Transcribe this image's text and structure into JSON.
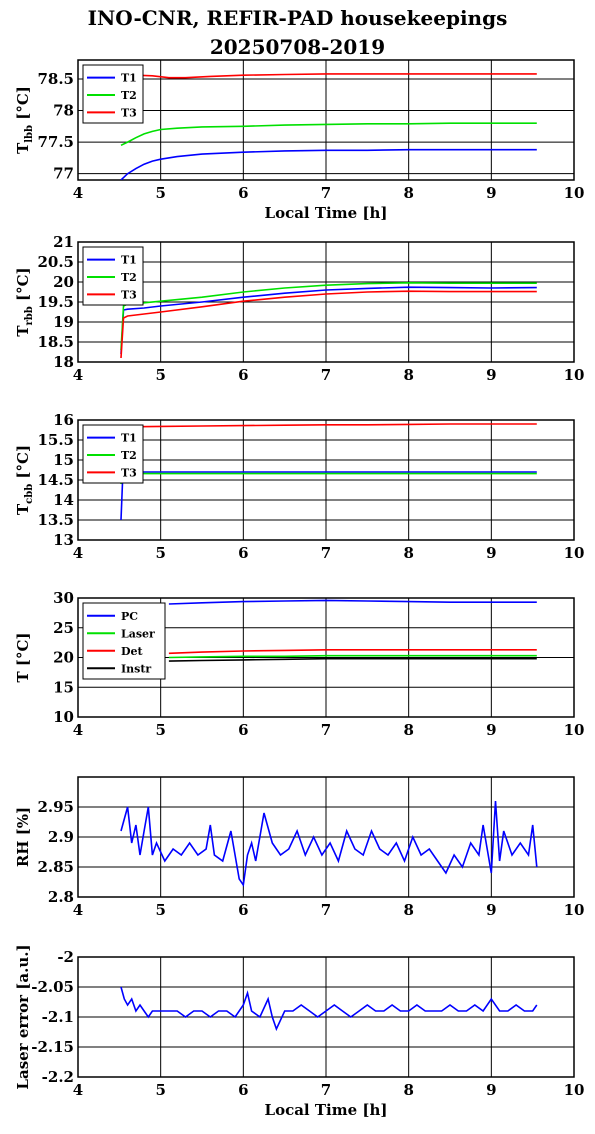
{
  "title": {
    "line1": "INO-CNR, REFIR-PAD housekeepings",
    "line2": "20250708-2019"
  },
  "colors": {
    "blue": "#0000ff",
    "green": "#00e000",
    "red": "#ff0000",
    "black": "#000000"
  },
  "chart_data": [
    {
      "type": "line",
      "ylabel": "T_lbb [°C]",
      "xlabel": "Local Time [h]",
      "xlim": [
        4,
        10
      ],
      "ylim": [
        76.9,
        78.8
      ],
      "xticks": [
        "4",
        "5",
        "6",
        "7",
        "8",
        "9",
        "10"
      ],
      "yticks": [
        "77",
        "77.5",
        "78",
        "78.5"
      ],
      "grid": true,
      "legend": "top-left",
      "series": [
        {
          "name": "T1",
          "color": "#0000ff",
          "x": [
            4.52,
            4.6,
            4.7,
            4.8,
            4.9,
            5.0,
            5.2,
            5.5,
            6.0,
            6.5,
            7.0,
            7.5,
            8.0,
            8.5,
            9.0,
            9.55
          ],
          "y": [
            76.9,
            77.0,
            77.08,
            77.15,
            77.2,
            77.23,
            77.27,
            77.31,
            77.34,
            77.36,
            77.37,
            77.37,
            77.38,
            77.38,
            77.38,
            77.38
          ]
        },
        {
          "name": "T2",
          "color": "#00e000",
          "x": [
            4.52,
            4.6,
            4.7,
            4.8,
            4.9,
            5.0,
            5.2,
            5.5,
            6.0,
            6.5,
            7.0,
            7.5,
            8.0,
            8.5,
            9.0,
            9.55
          ],
          "y": [
            77.45,
            77.5,
            77.57,
            77.63,
            77.67,
            77.7,
            77.72,
            77.74,
            77.75,
            77.77,
            77.78,
            77.79,
            77.79,
            77.8,
            77.8,
            77.8
          ]
        },
        {
          "name": "T3",
          "color": "#ff0000",
          "x": [
            4.52,
            4.7,
            4.9,
            5.1,
            5.3,
            5.6,
            6.0,
            6.5,
            7.0,
            7.5,
            8.0,
            8.5,
            9.0,
            9.55
          ],
          "y": [
            78.55,
            78.56,
            78.55,
            78.52,
            78.52,
            78.54,
            78.56,
            78.57,
            78.58,
            78.58,
            78.58,
            78.58,
            78.58,
            78.58
          ]
        }
      ]
    },
    {
      "type": "line",
      "ylabel": "T_rbb [°C]",
      "xlabel": "",
      "xlim": [
        4,
        10
      ],
      "ylim": [
        18,
        21
      ],
      "xticks": [
        "4",
        "5",
        "6",
        "7",
        "8",
        "9",
        "10"
      ],
      "yticks": [
        "18",
        "18.5",
        "19",
        "19.5",
        "20",
        "20.5",
        "21"
      ],
      "grid": true,
      "legend": "top-left",
      "series": [
        {
          "name": "T1",
          "color": "#0000ff",
          "x": [
            4.52,
            4.55,
            4.6,
            4.8,
            5.0,
            5.5,
            6.0,
            6.5,
            7.0,
            7.5,
            8.0,
            8.5,
            9.0,
            9.55
          ],
          "y": [
            18.2,
            19.3,
            19.32,
            19.35,
            19.4,
            19.5,
            19.62,
            19.72,
            19.8,
            19.84,
            19.87,
            19.86,
            19.85,
            19.86
          ]
        },
        {
          "name": "T2",
          "color": "#00e000",
          "x": [
            4.52,
            4.55,
            4.6,
            4.8,
            5.0,
            5.5,
            6.0,
            6.5,
            7.0,
            7.5,
            8.0,
            8.5,
            9.0,
            9.55
          ],
          "y": [
            18.3,
            19.4,
            19.45,
            19.48,
            19.52,
            19.62,
            19.75,
            19.85,
            19.92,
            19.96,
            19.98,
            19.97,
            19.97,
            19.97
          ]
        },
        {
          "name": "T3",
          "color": "#ff0000",
          "x": [
            4.52,
            4.55,
            4.6,
            4.8,
            5.0,
            5.5,
            6.0,
            6.5,
            7.0,
            7.5,
            8.0,
            8.5,
            9.0,
            9.55
          ],
          "y": [
            18.1,
            19.1,
            19.15,
            19.2,
            19.25,
            19.38,
            19.52,
            19.62,
            19.7,
            19.75,
            19.77,
            19.76,
            19.76,
            19.76
          ]
        }
      ]
    },
    {
      "type": "line",
      "ylabel": "T_cbb [°C]",
      "xlabel": "",
      "xlim": [
        4,
        10
      ],
      "ylim": [
        13,
        16
      ],
      "xticks": [
        "4",
        "5",
        "6",
        "7",
        "8",
        "9",
        "10"
      ],
      "yticks": [
        "13",
        "13.5",
        "14",
        "14.5",
        "15",
        "15.5",
        "16"
      ],
      "grid": true,
      "legend": "top-left",
      "series": [
        {
          "name": "T1",
          "color": "#0000ff",
          "x": [
            4.52,
            4.54,
            4.56,
            4.6,
            5.0,
            5.5,
            6.0,
            6.5,
            7.0,
            7.5,
            8.0,
            8.5,
            9.0,
            9.55
          ],
          "y": [
            13.5,
            14.5,
            14.68,
            14.7,
            14.7,
            14.7,
            14.7,
            14.7,
            14.7,
            14.7,
            14.7,
            14.7,
            14.7,
            14.7
          ]
        },
        {
          "name": "T2",
          "color": "#00e000",
          "x": [
            4.52,
            4.54,
            4.56,
            4.6,
            5.0,
            5.5,
            6.0,
            6.5,
            7.0,
            7.5,
            8.0,
            8.5,
            9.0,
            9.55
          ],
          "y": [
            14.4,
            14.6,
            14.65,
            14.66,
            14.66,
            14.66,
            14.66,
            14.66,
            14.66,
            14.66,
            14.66,
            14.66,
            14.66,
            14.66
          ]
        },
        {
          "name": "T3",
          "color": "#ff0000",
          "x": [
            4.52,
            4.6,
            5.0,
            5.5,
            6.0,
            6.5,
            7.0,
            7.5,
            8.0,
            8.5,
            9.0,
            9.55
          ],
          "y": [
            15.82,
            15.83,
            15.84,
            15.85,
            15.86,
            15.87,
            15.88,
            15.88,
            15.89,
            15.9,
            15.9,
            15.9
          ]
        }
      ]
    },
    {
      "type": "line",
      "ylabel": "T [°C]",
      "xlabel": "",
      "xlim": [
        4,
        10
      ],
      "ylim": [
        10,
        30
      ],
      "xticks": [
        "4",
        "5",
        "6",
        "7",
        "8",
        "9",
        "10"
      ],
      "yticks": [
        "10",
        "15",
        "20",
        "25",
        "30"
      ],
      "grid": true,
      "legend": "top-left",
      "series": [
        {
          "name": "PC",
          "color": "#0000ff",
          "x": [
            5.1,
            5.5,
            6.0,
            6.5,
            7.0,
            7.5,
            8.0,
            8.5,
            9.0,
            9.55
          ],
          "y": [
            29.0,
            29.2,
            29.4,
            29.5,
            29.6,
            29.5,
            29.4,
            29.3,
            29.3,
            29.3
          ]
        },
        {
          "name": "Laser",
          "color": "#00e000",
          "x": [
            5.1,
            5.5,
            6.0,
            6.5,
            7.0,
            7.5,
            8.0,
            8.5,
            9.0,
            9.55
          ],
          "y": [
            20.0,
            20.1,
            20.2,
            20.2,
            20.3,
            20.3,
            20.3,
            20.3,
            20.3,
            20.3
          ]
        },
        {
          "name": "Det",
          "color": "#ff0000",
          "x": [
            5.1,
            5.5,
            6.0,
            6.5,
            7.0,
            7.5,
            8.0,
            8.5,
            9.0,
            9.55
          ],
          "y": [
            20.7,
            20.9,
            21.1,
            21.2,
            21.3,
            21.3,
            21.3,
            21.3,
            21.3,
            21.3
          ]
        },
        {
          "name": "Instr",
          "color": "#000000",
          "x": [
            5.1,
            5.5,
            6.0,
            6.5,
            7.0,
            7.5,
            8.0,
            8.5,
            9.0,
            9.55
          ],
          "y": [
            19.4,
            19.5,
            19.6,
            19.7,
            19.8,
            19.8,
            19.8,
            19.8,
            19.8,
            19.8
          ]
        }
      ]
    },
    {
      "type": "line",
      "ylabel": "RH [%]",
      "xlabel": "",
      "xlim": [
        4,
        10
      ],
      "ylim": [
        2.8,
        3.0
      ],
      "xticks": [
        "4",
        "5",
        "6",
        "7",
        "8",
        "9",
        "10"
      ],
      "yticks": [
        "2.8",
        "2.85",
        "2.9",
        "2.95"
      ],
      "grid": true,
      "legend": "none",
      "series": [
        {
          "color": "#0000ff",
          "x": [
            4.52,
            4.6,
            4.65,
            4.7,
            4.75,
            4.8,
            4.85,
            4.9,
            4.95,
            5.05,
            5.15,
            5.25,
            5.35,
            5.45,
            5.55,
            5.6,
            5.65,
            5.75,
            5.85,
            5.95,
            6.0,
            6.05,
            6.1,
            6.15,
            6.25,
            6.35,
            6.45,
            6.55,
            6.65,
            6.75,
            6.85,
            6.95,
            7.05,
            7.15,
            7.25,
            7.35,
            7.45,
            7.55,
            7.65,
            7.75,
            7.85,
            7.95,
            8.05,
            8.15,
            8.25,
            8.35,
            8.45,
            8.55,
            8.65,
            8.75,
            8.85,
            8.9,
            9.0,
            9.05,
            9.1,
            9.15,
            9.25,
            9.35,
            9.45,
            9.5,
            9.55
          ],
          "y": [
            2.91,
            2.95,
            2.89,
            2.92,
            2.87,
            2.91,
            2.95,
            2.87,
            2.89,
            2.86,
            2.88,
            2.87,
            2.89,
            2.87,
            2.88,
            2.92,
            2.87,
            2.86,
            2.91,
            2.83,
            2.82,
            2.87,
            2.89,
            2.86,
            2.94,
            2.89,
            2.87,
            2.88,
            2.91,
            2.87,
            2.9,
            2.87,
            2.89,
            2.86,
            2.91,
            2.88,
            2.87,
            2.91,
            2.88,
            2.87,
            2.89,
            2.86,
            2.9,
            2.87,
            2.88,
            2.86,
            2.84,
            2.87,
            2.85,
            2.89,
            2.87,
            2.92,
            2.84,
            2.96,
            2.86,
            2.91,
            2.87,
            2.89,
            2.87,
            2.92,
            2.85
          ]
        }
      ]
    },
    {
      "type": "line",
      "ylabel": "Laser error [a.u.]",
      "xlabel": "Local Time [h]",
      "xlim": [
        4,
        10
      ],
      "ylim": [
        -2.2,
        -2.0
      ],
      "xticks": [
        "4",
        "5",
        "6",
        "7",
        "8",
        "9",
        "10"
      ],
      "yticks": [
        "-2.2",
        "-2.15",
        "-2.1",
        "-2.05",
        "-2"
      ],
      "grid": true,
      "legend": "none",
      "series": [
        {
          "color": "#0000ff",
          "x": [
            4.52,
            4.56,
            4.6,
            4.65,
            4.7,
            4.75,
            4.8,
            4.85,
            4.9,
            5.0,
            5.2,
            5.3,
            5.4,
            5.5,
            5.6,
            5.7,
            5.8,
            5.9,
            6.0,
            6.05,
            6.1,
            6.2,
            6.3,
            6.35,
            6.4,
            6.5,
            6.6,
            6.7,
            6.8,
            6.9,
            7.0,
            7.1,
            7.2,
            7.3,
            7.4,
            7.5,
            7.6,
            7.7,
            7.8,
            7.9,
            8.0,
            8.1,
            8.2,
            8.3,
            8.4,
            8.5,
            8.6,
            8.7,
            8.8,
            8.9,
            9.0,
            9.1,
            9.2,
            9.3,
            9.4,
            9.5,
            9.55
          ],
          "y": [
            -2.05,
            -2.07,
            -2.08,
            -2.07,
            -2.09,
            -2.08,
            -2.09,
            -2.1,
            -2.09,
            -2.09,
            -2.09,
            -2.1,
            -2.09,
            -2.09,
            -2.1,
            -2.09,
            -2.09,
            -2.1,
            -2.08,
            -2.06,
            -2.09,
            -2.1,
            -2.07,
            -2.1,
            -2.12,
            -2.09,
            -2.09,
            -2.08,
            -2.09,
            -2.1,
            -2.09,
            -2.08,
            -2.09,
            -2.1,
            -2.09,
            -2.08,
            -2.09,
            -2.09,
            -2.08,
            -2.09,
            -2.09,
            -2.08,
            -2.09,
            -2.09,
            -2.09,
            -2.08,
            -2.09,
            -2.09,
            -2.08,
            -2.09,
            -2.07,
            -2.09,
            -2.09,
            -2.08,
            -2.09,
            -2.09,
            -2.08
          ]
        }
      ]
    }
  ]
}
